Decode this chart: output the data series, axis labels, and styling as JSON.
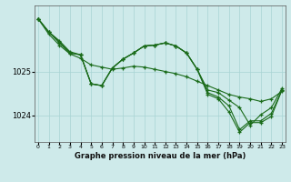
{
  "xlabel": "Graphe pression niveau de la mer (hPa)",
  "background_color": "#ceeaea",
  "grid_color": "#a8d4d4",
  "line_color": "#1a6b1a",
  "x_ticks": [
    0,
    1,
    2,
    3,
    4,
    5,
    6,
    7,
    8,
    9,
    10,
    11,
    12,
    13,
    14,
    15,
    16,
    17,
    18,
    19,
    20,
    21,
    22,
    23
  ],
  "ylim": [
    1023.4,
    1026.5
  ],
  "yticks": [
    1024,
    1025
  ],
  "series": [
    [
      1026.2,
      1025.85,
      1025.6,
      1025.4,
      1025.3,
      1025.15,
      1025.1,
      1025.05,
      1025.08,
      1025.12,
      1025.1,
      1025.05,
      1025.0,
      1024.95,
      1024.88,
      1024.78,
      1024.68,
      1024.58,
      1024.48,
      1024.42,
      1024.38,
      1024.32,
      1024.38,
      1024.55
    ],
    [
      1026.2,
      1025.9,
      1025.7,
      1025.45,
      1025.38,
      1024.72,
      1024.68,
      1025.08,
      1025.28,
      1025.42,
      1025.58,
      1025.6,
      1025.65,
      1025.58,
      1025.42,
      1025.05,
      1024.58,
      1024.52,
      1024.35,
      1024.18,
      1023.78,
      1024.02,
      1024.18,
      1024.62
    ],
    [
      1026.2,
      1025.9,
      1025.68,
      1025.42,
      1025.38,
      1024.72,
      1024.68,
      1025.08,
      1025.28,
      1025.42,
      1025.58,
      1025.6,
      1025.65,
      1025.58,
      1025.42,
      1025.05,
      1024.52,
      1024.42,
      1024.22,
      1023.68,
      1023.88,
      1023.88,
      1024.05,
      1024.58
    ],
    [
      1026.2,
      1025.9,
      1025.65,
      1025.42,
      1025.38,
      1024.72,
      1024.68,
      1025.08,
      1025.28,
      1025.42,
      1025.58,
      1025.6,
      1025.65,
      1025.58,
      1025.42,
      1025.05,
      1024.48,
      1024.38,
      1024.08,
      1023.62,
      1023.84,
      1023.84,
      1023.98,
      1024.58
    ]
  ]
}
